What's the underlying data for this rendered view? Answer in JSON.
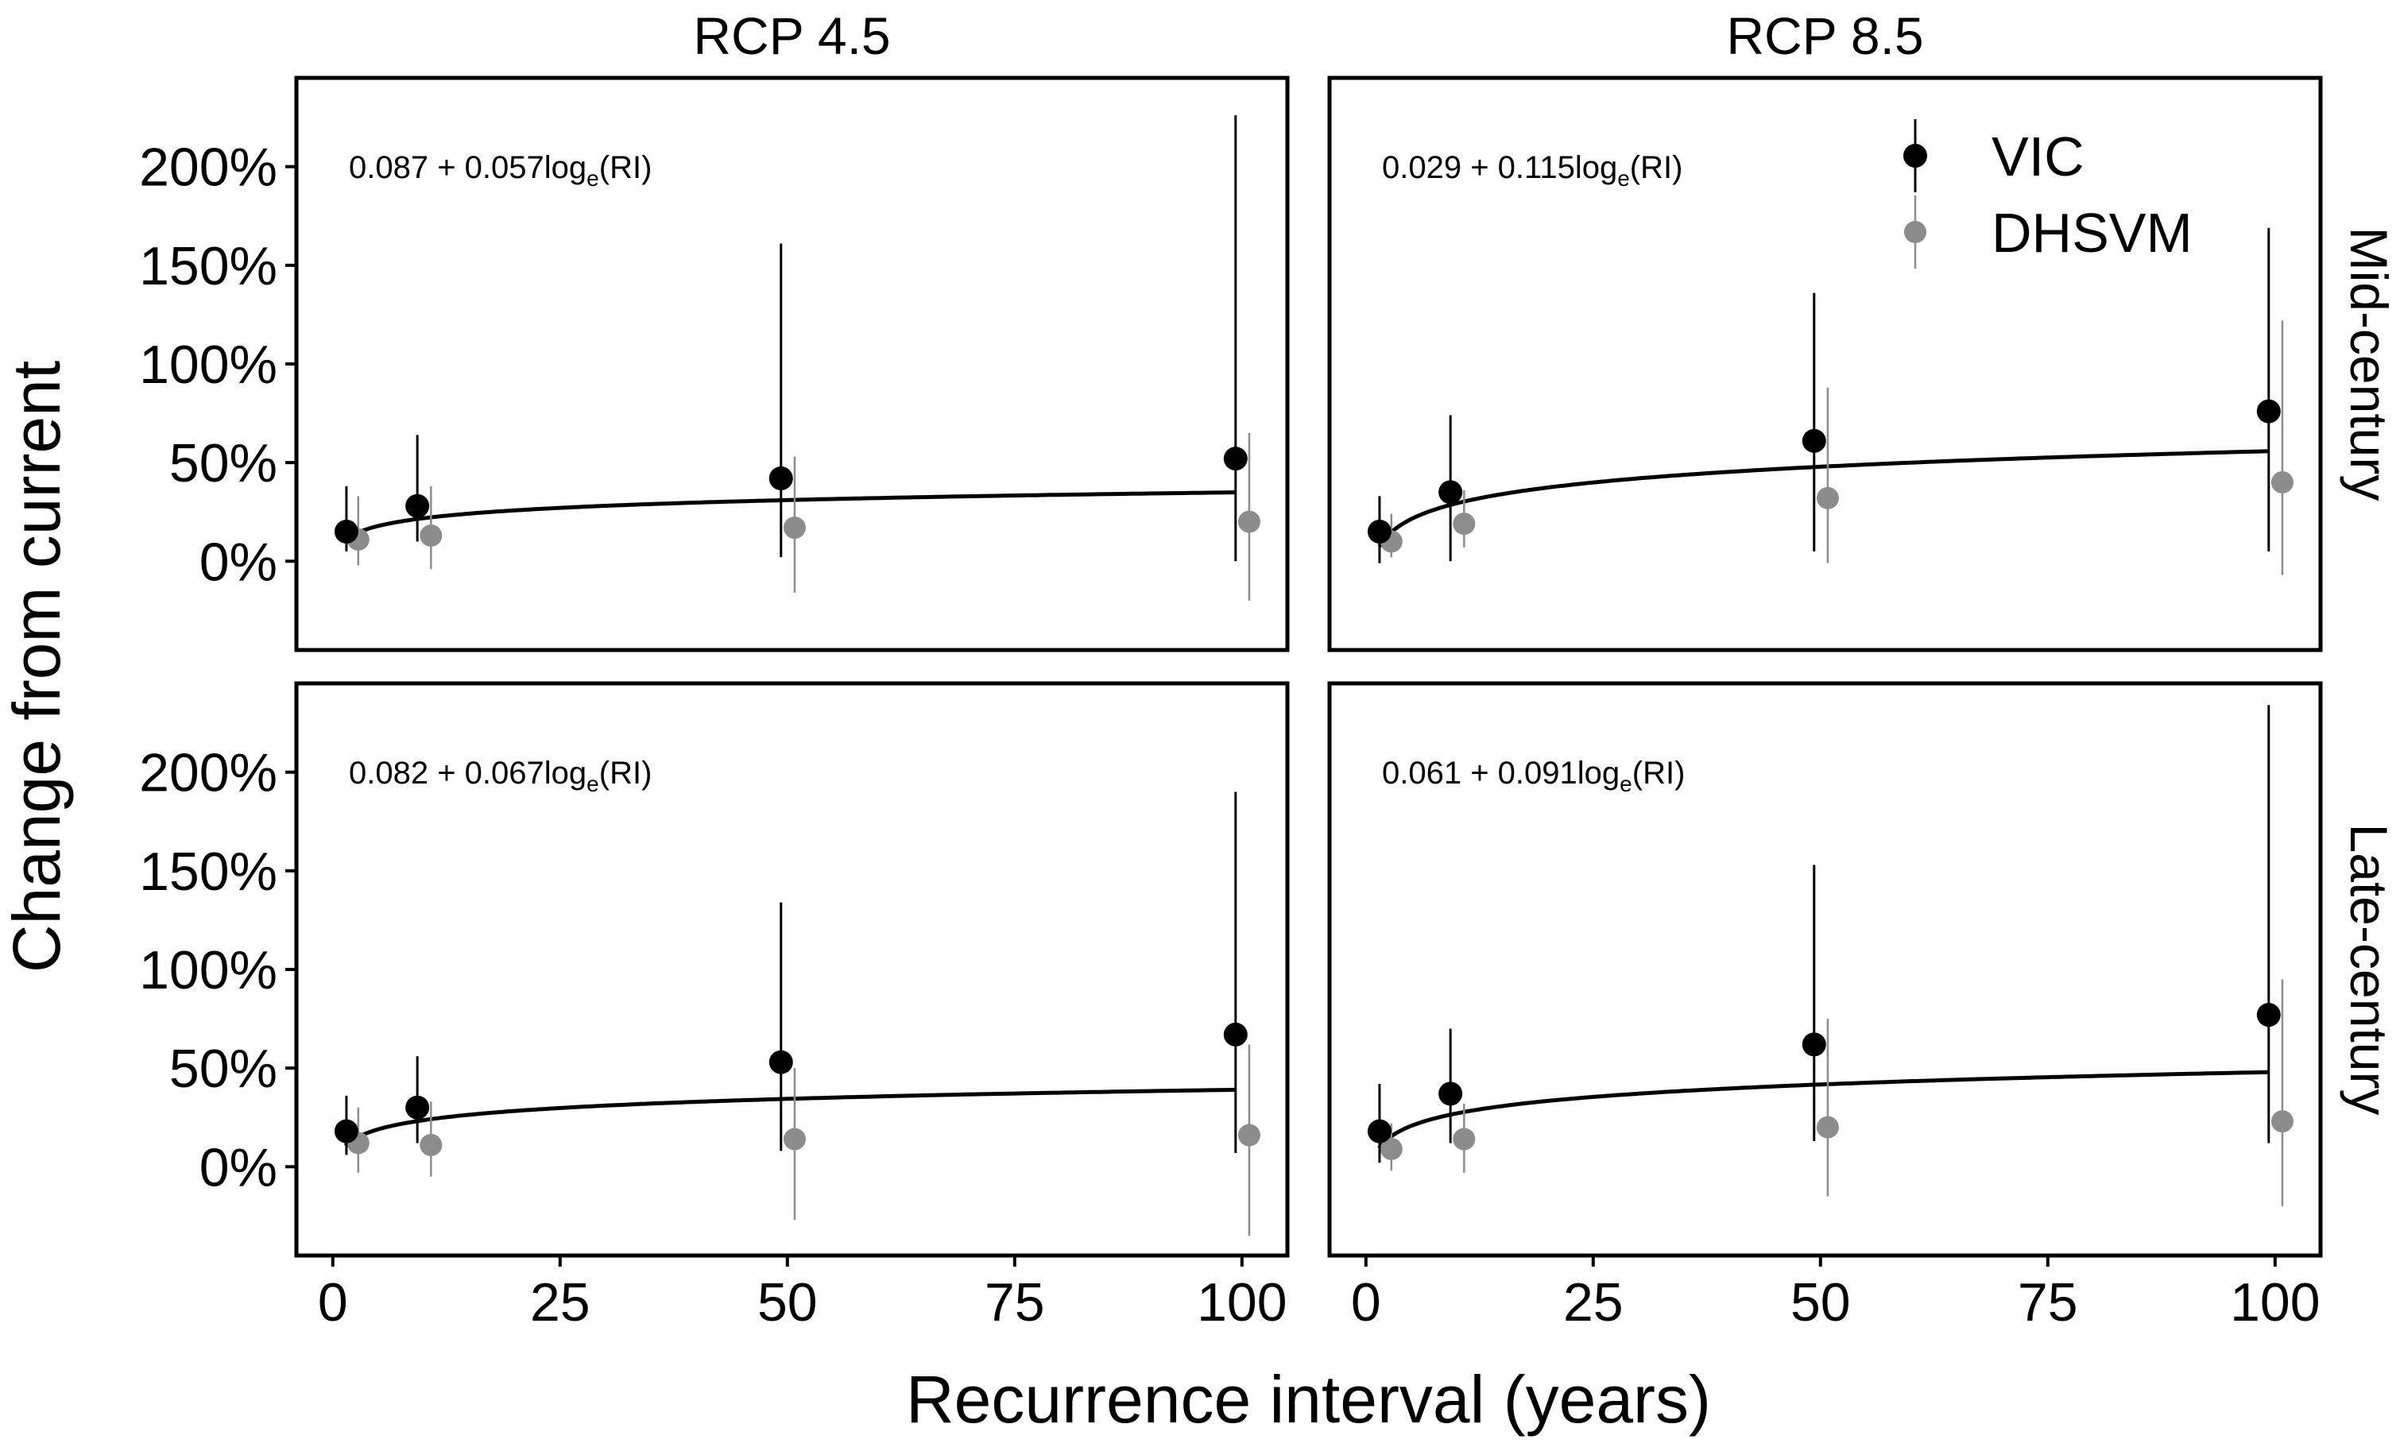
{
  "chart_data": {
    "type": "scatter",
    "title": "",
    "xlabel": "Recurrence interval (years)",
    "ylabel": "Change from current",
    "column_facets": [
      "RCP 4.5",
      "RCP 8.5"
    ],
    "row_facets": [
      "Mid-century",
      "Late-century"
    ],
    "xlim": [
      -4,
      105
    ],
    "ylim": [
      -0.45,
      2.45
    ],
    "x_ticks": [
      0,
      25,
      50,
      75,
      100
    ],
    "x_tick_labels": [
      "0",
      "25",
      "50",
      "75",
      "100"
    ],
    "y_ticks": [
      0,
      0.5,
      1.0,
      1.5,
      2.0
    ],
    "y_tick_labels": [
      "0%",
      "50%",
      "100%",
      "150%",
      "200%"
    ],
    "legend": {
      "position": "top-right",
      "entries": [
        {
          "name": "VIC",
          "color": "#000000"
        },
        {
          "name": "DHSVM",
          "color": "#8c8c8c"
        }
      ]
    },
    "series_colors": {
      "VIC": "#000000",
      "DHSVM": "#8c8c8c"
    },
    "panels": [
      {
        "id": "rcp45-mid",
        "column": "RCP 4.5",
        "row": "Mid-century",
        "equation_text": "0.087 + 0.057log",
        "equation_sub": "e",
        "equation_suffix": "(RI)",
        "fit": {
          "a": 0.087,
          "b": 0.057
        },
        "series": [
          {
            "name": "VIC",
            "points": [
              {
                "x": 1.5,
                "y": 0.15,
                "lo": 0.05,
                "hi": 0.38
              },
              {
                "x": 9.3,
                "y": 0.28,
                "lo": 0.1,
                "hi": 0.64
              },
              {
                "x": 49.3,
                "y": 0.42,
                "lo": 0.02,
                "hi": 1.61
              },
              {
                "x": 99.3,
                "y": 0.52,
                "lo": 0.0,
                "hi": 2.26
              }
            ]
          },
          {
            "name": "DHSVM",
            "points": [
              {
                "x": 2.8,
                "y": 0.11,
                "lo": -0.02,
                "hi": 0.33
              },
              {
                "x": 10.8,
                "y": 0.13,
                "lo": -0.04,
                "hi": 0.38
              },
              {
                "x": 50.8,
                "y": 0.17,
                "lo": -0.16,
                "hi": 0.53
              },
              {
                "x": 100.8,
                "y": 0.2,
                "lo": -0.2,
                "hi": 0.65
              }
            ]
          }
        ]
      },
      {
        "id": "rcp85-mid",
        "column": "RCP 8.5",
        "row": "Mid-century",
        "equation_text": "0.029 + 0.115log",
        "equation_sub": "e",
        "equation_suffix": "(RI)",
        "fit": {
          "a": 0.029,
          "b": 0.115
        },
        "series": [
          {
            "name": "VIC",
            "points": [
              {
                "x": 1.5,
                "y": 0.15,
                "lo": -0.01,
                "hi": 0.33
              },
              {
                "x": 9.3,
                "y": 0.35,
                "lo": 0.0,
                "hi": 0.74
              },
              {
                "x": 49.3,
                "y": 0.61,
                "lo": 0.05,
                "hi": 1.36
              },
              {
                "x": 99.3,
                "y": 0.76,
                "lo": 0.05,
                "hi": 1.69
              }
            ]
          },
          {
            "name": "DHSVM",
            "points": [
              {
                "x": 2.8,
                "y": 0.1,
                "lo": 0.02,
                "hi": 0.24
              },
              {
                "x": 10.8,
                "y": 0.19,
                "lo": 0.07,
                "hi": 0.36
              },
              {
                "x": 50.8,
                "y": 0.32,
                "lo": -0.01,
                "hi": 0.88
              },
              {
                "x": 100.8,
                "y": 0.4,
                "lo": -0.07,
                "hi": 1.22
              }
            ]
          }
        ]
      },
      {
        "id": "rcp45-late",
        "column": "RCP 4.5",
        "row": "Late-century",
        "equation_text": "0.082 + 0.067log",
        "equation_sub": "e",
        "equation_suffix": "(RI)",
        "fit": {
          "a": 0.082,
          "b": 0.067
        },
        "series": [
          {
            "name": "VIC",
            "points": [
              {
                "x": 1.5,
                "y": 0.18,
                "lo": 0.06,
                "hi": 0.36
              },
              {
                "x": 9.3,
                "y": 0.3,
                "lo": 0.12,
                "hi": 0.56
              },
              {
                "x": 49.3,
                "y": 0.53,
                "lo": 0.08,
                "hi": 1.34
              },
              {
                "x": 99.3,
                "y": 0.67,
                "lo": 0.07,
                "hi": 1.9
              }
            ]
          },
          {
            "name": "DHSVM",
            "points": [
              {
                "x": 2.8,
                "y": 0.12,
                "lo": -0.03,
                "hi": 0.3
              },
              {
                "x": 10.8,
                "y": 0.11,
                "lo": -0.05,
                "hi": 0.33
              },
              {
                "x": 50.8,
                "y": 0.14,
                "lo": -0.27,
                "hi": 0.5
              },
              {
                "x": 100.8,
                "y": 0.16,
                "lo": -0.35,
                "hi": 0.62
              }
            ]
          }
        ]
      },
      {
        "id": "rcp85-late",
        "column": "RCP 8.5",
        "row": "Late-century",
        "equation_text": "0.061 + 0.091log",
        "equation_sub": "e",
        "equation_suffix": "(RI)",
        "fit": {
          "a": 0.061,
          "b": 0.091
        },
        "series": [
          {
            "name": "VIC",
            "points": [
              {
                "x": 1.5,
                "y": 0.18,
                "lo": 0.02,
                "hi": 0.42
              },
              {
                "x": 9.3,
                "y": 0.37,
                "lo": 0.12,
                "hi": 0.7
              },
              {
                "x": 49.3,
                "y": 0.62,
                "lo": 0.13,
                "hi": 1.53
              },
              {
                "x": 99.3,
                "y": 0.77,
                "lo": 0.12,
                "hi": 2.34
              }
            ]
          },
          {
            "name": "DHSVM",
            "points": [
              {
                "x": 2.8,
                "y": 0.09,
                "lo": -0.02,
                "hi": 0.22
              },
              {
                "x": 10.8,
                "y": 0.14,
                "lo": -0.03,
                "hi": 0.32
              },
              {
                "x": 50.8,
                "y": 0.2,
                "lo": -0.15,
                "hi": 0.75
              },
              {
                "x": 100.8,
                "y": 0.23,
                "lo": -0.2,
                "hi": 0.95
              }
            ]
          }
        ]
      }
    ]
  }
}
